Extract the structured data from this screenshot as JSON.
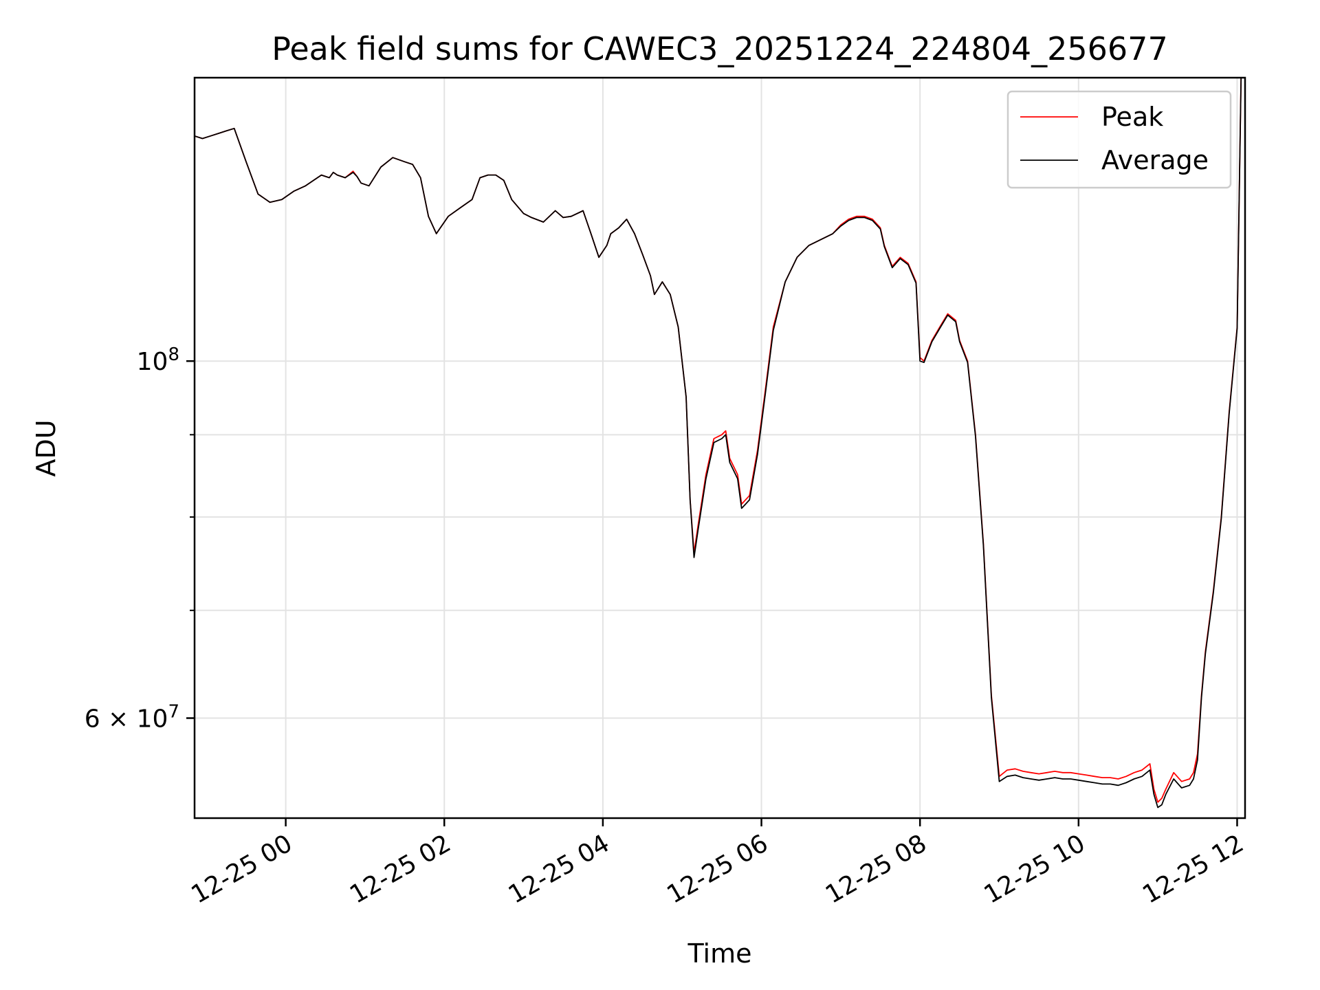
{
  "chart_data": {
    "type": "line",
    "title": "Peak field sums for CAWEC3_20251224_224804_256677",
    "xlabel": "Time",
    "ylabel": "ADU",
    "yscale": "log",
    "xlim": [
      -1.15,
      12.1
    ],
    "ylim": [
      52000000.0,
      150000000.0
    ],
    "grid": true,
    "legend_position": "upper right",
    "x_tick_labels": [
      {
        "value": 0,
        "label": "12-25 00"
      },
      {
        "value": 2,
        "label": "12-25 02"
      },
      {
        "value": 4,
        "label": "12-25 04"
      },
      {
        "value": 6,
        "label": "12-25 06"
      },
      {
        "value": 8,
        "label": "12-25 08"
      },
      {
        "value": 10,
        "label": "12-25 10"
      },
      {
        "value": 12,
        "label": "12-25 12"
      }
    ],
    "y_tick_labels": [
      {
        "value": 100000000.0,
        "base": "10",
        "exp": "8"
      },
      {
        "value": 60000000.0,
        "base": "6 × 10",
        "exp": "7"
      }
    ],
    "y_minor_ticks": [
      70000000.0,
      80000000.0,
      90000000.0
    ],
    "x": [
      -1.15,
      -1.05,
      -0.95,
      -0.85,
      -0.75,
      -0.65,
      -0.5,
      -0.35,
      -0.2,
      -0.05,
      0.1,
      0.25,
      0.35,
      0.45,
      0.55,
      0.6,
      0.65,
      0.75,
      0.85,
      0.9,
      0.95,
      1.05,
      1.2,
      1.35,
      1.5,
      1.6,
      1.7,
      1.8,
      1.9,
      1.95,
      2.05,
      2.2,
      2.35,
      2.45,
      2.55,
      2.65,
      2.75,
      2.85,
      3.0,
      3.1,
      3.25,
      3.4,
      3.5,
      3.6,
      3.75,
      3.85,
      3.95,
      4.05,
      4.1,
      4.2,
      4.3,
      4.4,
      4.5,
      4.6,
      4.65,
      4.75,
      4.85,
      4.95,
      5.05,
      5.1,
      5.15,
      5.2,
      5.3,
      5.4,
      5.5,
      5.55,
      5.6,
      5.7,
      5.75,
      5.8,
      5.85,
      5.95,
      6.05,
      6.15,
      6.3,
      6.45,
      6.6,
      6.75,
      6.9,
      7.0,
      7.1,
      7.2,
      7.3,
      7.4,
      7.5,
      7.55,
      7.65,
      7.75,
      7.85,
      7.95,
      8.0,
      8.05,
      8.15,
      8.25,
      8.35,
      8.45,
      8.5,
      8.6,
      8.7,
      8.8,
      8.9,
      9.0,
      9.1,
      9.2,
      9.3,
      9.4,
      9.5,
      9.6,
      9.7,
      9.8,
      9.9,
      10.0,
      10.1,
      10.2,
      10.3,
      10.4,
      10.5,
      10.6,
      10.7,
      10.8,
      10.9,
      10.95,
      11.0,
      11.05,
      11.1,
      11.2,
      11.3,
      11.4,
      11.45,
      11.5,
      11.55,
      11.6,
      11.7,
      11.8,
      11.9,
      12.0,
      12.05,
      12.1
    ],
    "series": [
      {
        "name": "Peak",
        "color": "#ff0000",
        "values": [
          138000000.0,
          137500000.0,
          138000000.0,
          138500000.0,
          139000000.0,
          139500000.0,
          133000000.0,
          127000000.0,
          125500000.0,
          126000000.0,
          127500000.0,
          128500000.0,
          129500000.0,
          130500000.0,
          130000000.0,
          131000000.0,
          130500000.0,
          130000000.0,
          131200000.0,
          130200000.0,
          129000000.0,
          128500000.0,
          132000000.0,
          133800000.0,
          133000000.0,
          132500000.0,
          130000000.0,
          123000000.0,
          120000000.0,
          121000000.0,
          123000000.0,
          124500000.0,
          126000000.0,
          130000000.0,
          130500000.0,
          130500000.0,
          129500000.0,
          126000000.0,
          123500000.0,
          122800000.0,
          122000000.0,
          124000000.0,
          122800000.0,
          123000000.0,
          124000000.0,
          120000000.0,
          116000000.0,
          118000000.0,
          120000000.0,
          121000000.0,
          122500000.0,
          120000000.0,
          116500000.0,
          113000000.0,
          110000000.0,
          112000000.0,
          110000000.0,
          105000000.0,
          95000000.0,
          82000000.0,
          76000000.0,
          79000000.0,
          85000000.0,
          89500000.0,
          90000000.0,
          90500000.0,
          87000000.0,
          85000000.0,
          81500000.0,
          82000000.0,
          82500000.0,
          88000000.0,
          96000000.0,
          105000000.0,
          112000000.0,
          116000000.0,
          118000000.0,
          119000000.0,
          120000000.0,
          121500000.0,
          122500000.0,
          123000000.0,
          123000000.0,
          122500000.0,
          121000000.0,
          118000000.0,
          114500000.0,
          116000000.0,
          115000000.0,
          112000000.0,
          100500000.0,
          100000000.0,
          103000000.0,
          105000000.0,
          107000000.0,
          106000000.0,
          103000000.0,
          100000000.0,
          90000000.0,
          77000000.0,
          62000000.0,
          55200000.0,
          55700000.0,
          55800000.0,
          55600000.0,
          55500000.0,
          55400000.0,
          55500000.0,
          55600000.0,
          55500000.0,
          55500000.0,
          55400000.0,
          55300000.0,
          55200000.0,
          55100000.0,
          55100000.0,
          55000000.0,
          55200000.0,
          55500000.0,
          55700000.0,
          56200000.0,
          54200000.0,
          53200000.0,
          53500000.0,
          54200000.0,
          55500000.0,
          54800000.0,
          55000000.0,
          55500000.0,
          57000000.0,
          62000000.0,
          66000000.0,
          72000000.0,
          80000000.0,
          93000000.0,
          105000000.0,
          150000000.0,
          150000000.0
        ]
      },
      {
        "name": "Average",
        "color": "#000000",
        "values": [
          138000000.0,
          137500000.0,
          138000000.0,
          138500000.0,
          139000000.0,
          139500000.0,
          133000000.0,
          127000000.0,
          125500000.0,
          126000000.0,
          127500000.0,
          128500000.0,
          129500000.0,
          130500000.0,
          130000000.0,
          131000000.0,
          130500000.0,
          130000000.0,
          131000000.0,
          130200000.0,
          129000000.0,
          128500000.0,
          132000000.0,
          133800000.0,
          133000000.0,
          132500000.0,
          130000000.0,
          123000000.0,
          120000000.0,
          121000000.0,
          123000000.0,
          124500000.0,
          126000000.0,
          130000000.0,
          130500000.0,
          130500000.0,
          129500000.0,
          126000000.0,
          123500000.0,
          122800000.0,
          122000000.0,
          124000000.0,
          122800000.0,
          123000000.0,
          124000000.0,
          120000000.0,
          116000000.0,
          118000000.0,
          120000000.0,
          121000000.0,
          122500000.0,
          120000000.0,
          116500000.0,
          113000000.0,
          110000000.0,
          112000000.0,
          110000000.0,
          105000000.0,
          95000000.0,
          82000000.0,
          75500000.0,
          78500000.0,
          84500000.0,
          89000000.0,
          89500000.0,
          90000000.0,
          86500000.0,
          84500000.0,
          81000000.0,
          81500000.0,
          82000000.0,
          87500000.0,
          95500000.0,
          104500000.0,
          112000000.0,
          116000000.0,
          118000000.0,
          119000000.0,
          120000000.0,
          121300000.0,
          122300000.0,
          122800000.0,
          122800000.0,
          122300000.0,
          120800000.0,
          117800000.0,
          114300000.0,
          115800000.0,
          114800000.0,
          111800000.0,
          100000000.0,
          99800000.0,
          102800000.0,
          104800000.0,
          106800000.0,
          105800000.0,
          102800000.0,
          99800000.0,
          89800000.0,
          76800000.0,
          61800000.0,
          54800000.0,
          55200000.0,
          55300000.0,
          55100000.0,
          55000000.0,
          54900000.0,
          55000000.0,
          55100000.0,
          55000000.0,
          55000000.0,
          54900000.0,
          54800000.0,
          54700000.0,
          54600000.0,
          54600000.0,
          54500000.0,
          54700000.0,
          55000000.0,
          55200000.0,
          55700000.0,
          53800000.0,
          52800000.0,
          53000000.0,
          53800000.0,
          55000000.0,
          54300000.0,
          54500000.0,
          55000000.0,
          56500000.0,
          61800000.0,
          65800000.0,
          71800000.0,
          79800000.0,
          92800000.0,
          104800000.0,
          150000000.0,
          150000000.0
        ]
      }
    ]
  }
}
